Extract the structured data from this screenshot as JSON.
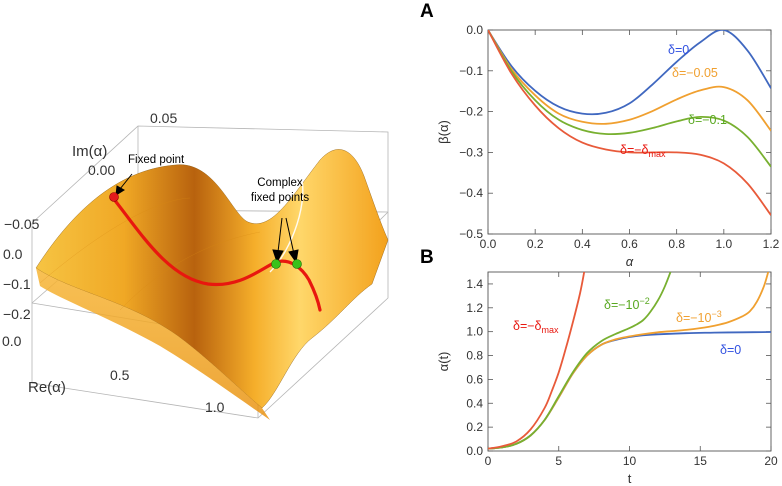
{
  "surface_panel": {
    "labels": {
      "im_axis": "Im(α)",
      "re_axis": "Re(α)",
      "fixed_point": "Fixed point",
      "complex_line1": "Complex",
      "complex_line2": "fixed points"
    },
    "im_ticks": [
      "0.05",
      "0.00",
      "−0.05"
    ],
    "vert_ticks": [
      "0.0",
      "−0.1",
      "−0.2"
    ],
    "re_ticks": [
      "0.0",
      "0.5",
      "1.0"
    ],
    "colors": {
      "surface": "#f2a51e",
      "curve": "#e8170f",
      "fixed_point": "#e31a1c",
      "complex_points": "#39c21a"
    }
  },
  "chart_data": [
    {
      "panel": "A",
      "type": "line",
      "xlabel": "α",
      "ylabel": "β(α)",
      "xlim": [
        0.0,
        1.2
      ],
      "ylim": [
        -0.5,
        0.0
      ],
      "xticks": [
        "0.0",
        "0.2",
        "0.4",
        "0.6",
        "0.8",
        "1.0",
        "1.2"
      ],
      "yticks": [
        "0.0",
        "−0.1",
        "−0.2",
        "−0.3",
        "−0.4",
        "−0.5"
      ],
      "series": [
        {
          "name": "δ=0",
          "color": "#4068c0",
          "points": [
            [
              0,
              0
            ],
            [
              0.1,
              -0.089
            ],
            [
              0.2,
              -0.149
            ],
            [
              0.3,
              -0.188
            ],
            [
              0.4,
              -0.205
            ],
            [
              0.5,
              -0.203
            ],
            [
              0.6,
              -0.18
            ],
            [
              0.7,
              -0.132
            ],
            [
              0.8,
              -0.078
            ],
            [
              0.9,
              -0.03
            ],
            [
              1.0,
              0.0
            ],
            [
              1.1,
              -0.05
            ],
            [
              1.2,
              -0.143
            ]
          ]
        },
        {
          "name": "δ=−0.05",
          "color": "#f0a030",
          "points": [
            [
              0,
              0
            ],
            [
              0.1,
              -0.096
            ],
            [
              0.2,
              -0.16
            ],
            [
              0.3,
              -0.205
            ],
            [
              0.4,
              -0.225
            ],
            [
              0.5,
              -0.23
            ],
            [
              0.6,
              -0.22
            ],
            [
              0.7,
              -0.198
            ],
            [
              0.8,
              -0.17
            ],
            [
              0.9,
              -0.148
            ],
            [
              1.0,
              -0.14
            ],
            [
              1.1,
              -0.172
            ],
            [
              1.2,
              -0.247
            ]
          ]
        },
        {
          "name": "δ=−0.1",
          "color": "#78b030",
          "points": [
            [
              0,
              0
            ],
            [
              0.1,
              -0.101
            ],
            [
              0.2,
              -0.172
            ],
            [
              0.3,
              -0.22
            ],
            [
              0.4,
              -0.245
            ],
            [
              0.5,
              -0.255
            ],
            [
              0.6,
              -0.252
            ],
            [
              0.7,
              -0.24
            ],
            [
              0.8,
              -0.224
            ],
            [
              0.9,
              -0.213
            ],
            [
              1.0,
              -0.222
            ],
            [
              1.1,
              -0.262
            ],
            [
              1.2,
              -0.335
            ]
          ]
        },
        {
          "name": "δ=−δmax",
          "color": "#e85a3a",
          "points": [
            [
              0,
              0
            ],
            [
              0.1,
              -0.107
            ],
            [
              0.2,
              -0.185
            ],
            [
              0.3,
              -0.241
            ],
            [
              0.4,
              -0.276
            ],
            [
              0.5,
              -0.293
            ],
            [
              0.6,
              -0.3
            ],
            [
              0.7,
              -0.3
            ],
            [
              0.8,
              -0.3
            ],
            [
              0.9,
              -0.306
            ],
            [
              1.0,
              -0.327
            ],
            [
              1.1,
              -0.376
            ],
            [
              1.2,
              -0.454
            ]
          ]
        }
      ],
      "annotations": [
        {
          "text": "δ=0",
          "color": "#3050e0"
        },
        {
          "text": "δ=−0.05",
          "color": "#f0a030"
        },
        {
          "text": "δ=−0.1",
          "color": "#58a820"
        },
        {
          "text": "δ=−δ",
          "sub": "max",
          "color": "#e8170f"
        }
      ]
    },
    {
      "panel": "B",
      "type": "line",
      "xlabel": "t",
      "ylabel": "α(t)",
      "xlim": [
        0,
        20
      ],
      "ylim": [
        0.0,
        1.5
      ],
      "xticks": [
        "0",
        "5",
        "10",
        "15",
        "20"
      ],
      "yticks": [
        "0.0",
        "0.2",
        "0.4",
        "0.6",
        "0.8",
        "1.0",
        "1.2",
        "1.4"
      ],
      "series": [
        {
          "name": "δ=0",
          "color": "#4068c0",
          "points": [
            [
              0,
              0.02
            ],
            [
              1,
              0.03
            ],
            [
              2,
              0.06
            ],
            [
              3,
              0.13
            ],
            [
              4,
              0.26
            ],
            [
              5,
              0.45
            ],
            [
              6,
              0.65
            ],
            [
              7,
              0.8
            ],
            [
              8,
              0.89
            ],
            [
              9,
              0.93
            ],
            [
              10,
              0.955
            ],
            [
              11,
              0.97
            ],
            [
              12,
              0.978
            ],
            [
              14,
              0.987
            ],
            [
              16,
              0.992
            ],
            [
              18,
              0.995
            ],
            [
              20,
              0.997
            ]
          ]
        },
        {
          "name": "δ=−10^−3",
          "color": "#f0a030",
          "points": [
            [
              0,
              0.02
            ],
            [
              1,
              0.03
            ],
            [
              2,
              0.06
            ],
            [
              3,
              0.13
            ],
            [
              4,
              0.26
            ],
            [
              5,
              0.45
            ],
            [
              6,
              0.65
            ],
            [
              7,
              0.8
            ],
            [
              8,
              0.89
            ],
            [
              9,
              0.935
            ],
            [
              10,
              0.96
            ],
            [
              11,
              0.98
            ],
            [
              12,
              0.995
            ],
            [
              13,
              1.005
            ],
            [
              14,
              1.015
            ],
            [
              15,
              1.03
            ],
            [
              16,
              1.05
            ],
            [
              17,
              1.08
            ],
            [
              18,
              1.13
            ],
            [
              18.5,
              1.17
            ],
            [
              19,
              1.25
            ],
            [
              19.5,
              1.38
            ],
            [
              19.8,
              1.5
            ]
          ]
        },
        {
          "name": "δ=−10^−2",
          "color": "#78b030",
          "points": [
            [
              0,
              0.02
            ],
            [
              1,
              0.03
            ],
            [
              2,
              0.06
            ],
            [
              3,
              0.13
            ],
            [
              4,
              0.26
            ],
            [
              5,
              0.46
            ],
            [
              6,
              0.66
            ],
            [
              7,
              0.82
            ],
            [
              8,
              0.92
            ],
            [
              9,
              0.98
            ],
            [
              10,
              1.03
            ],
            [
              10.5,
              1.06
            ],
            [
              11,
              1.1
            ],
            [
              11.5,
              1.17
            ],
            [
              12,
              1.26
            ],
            [
              12.5,
              1.38
            ],
            [
              12.9,
              1.5
            ]
          ]
        },
        {
          "name": "δ=−δmax",
          "color": "#e85a3a",
          "points": [
            [
              0,
              0.02
            ],
            [
              1,
              0.04
            ],
            [
              2,
              0.08
            ],
            [
              3,
              0.18
            ],
            [
              4,
              0.36
            ],
            [
              4.5,
              0.5
            ],
            [
              5,
              0.66
            ],
            [
              5.5,
              0.86
            ],
            [
              6,
              1.08
            ],
            [
              6.5,
              1.32
            ],
            [
              6.8,
              1.5
            ]
          ]
        }
      ],
      "annotations": [
        {
          "text": "δ=−δ",
          "sub": "max",
          "color": "#e8170f"
        },
        {
          "text": "δ=−10",
          "sup": "−2",
          "color": "#58a820"
        },
        {
          "text": "δ=−10",
          "sup": "−3",
          "color": "#f0a030"
        },
        {
          "text": "δ=0",
          "color": "#3050e0"
        }
      ]
    }
  ]
}
